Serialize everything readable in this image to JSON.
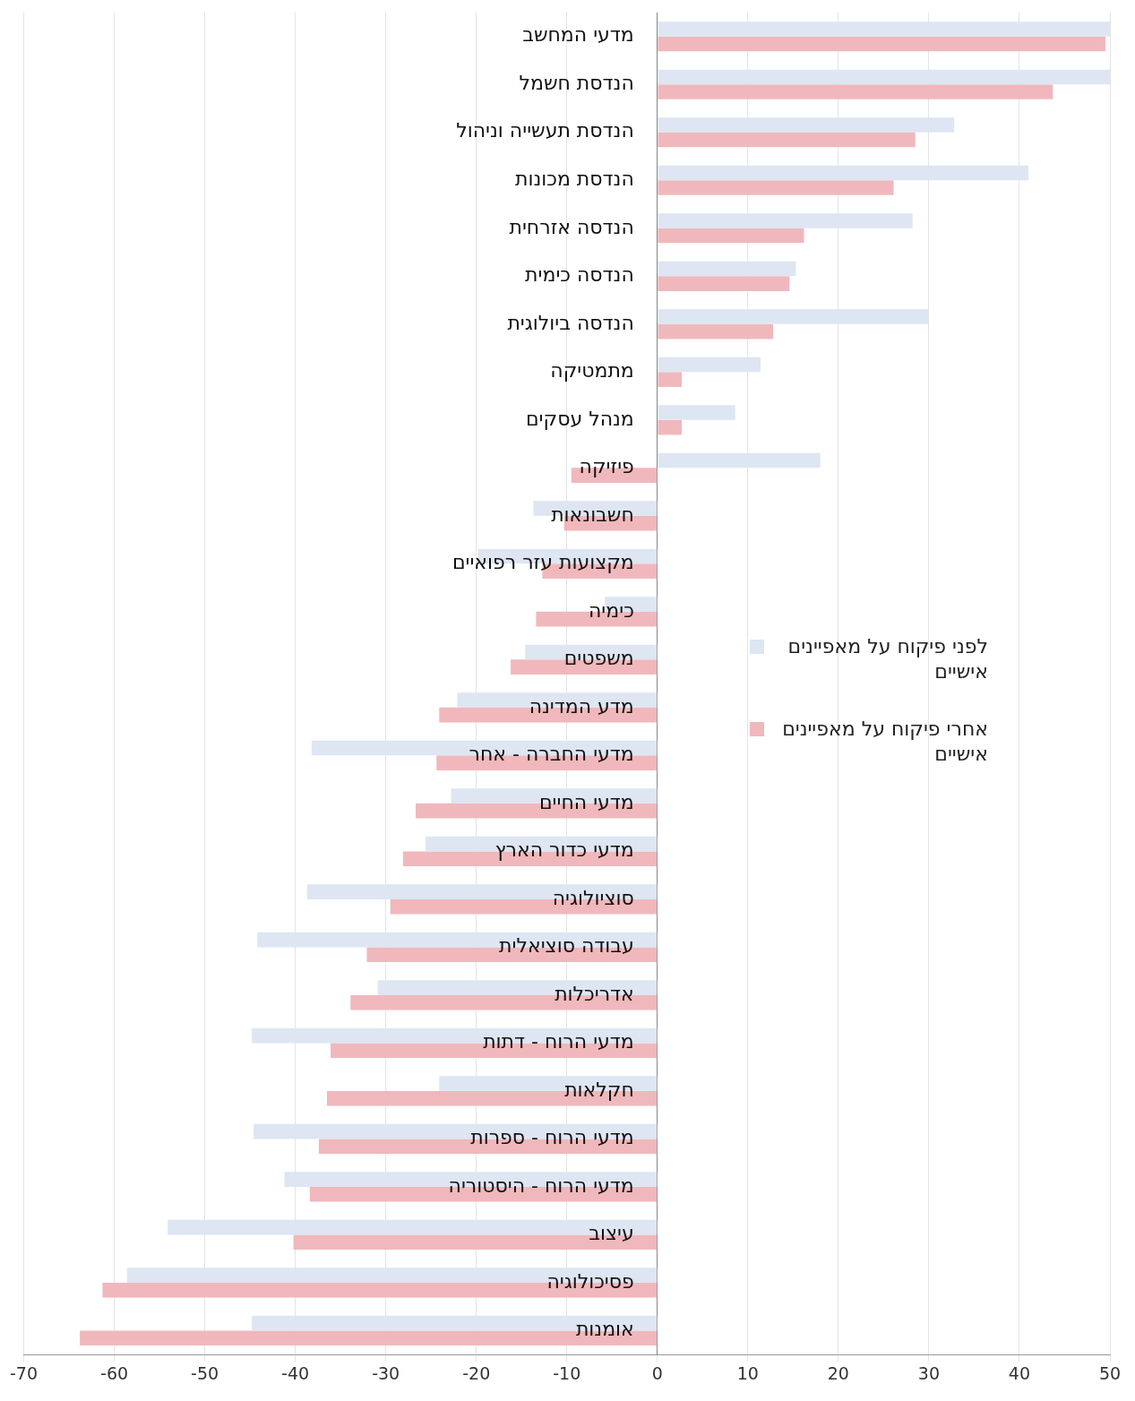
{
  "chart_data": {
    "type": "bar",
    "orientation": "horizontal",
    "categories": [
      "מדעי המחשב",
      "הנדסת חשמל",
      "הנדסת תעשייה וניהול",
      "הנדסת מכונות",
      "הנדסה אזרחית",
      "הנדסה כימית",
      "הנדסה ביולוגית",
      "מתמטיקה",
      "מנהל עסקים",
      "פיזיקה",
      "חשבונאות",
      "מקצועות עזר רפואיים",
      "כימיה",
      "משפטים",
      "מדע המדינה",
      "מדעי החברה - אחר",
      "מדעי החיים",
      "מדעי כדור הארץ",
      "סוציולוגיה",
      "עבודה סוציאלית",
      "אדריכלות",
      "מדעי הרוח - דתות",
      "חקלאות",
      "מדעי הרוח - ספרות",
      "מדעי הרוח - היסטוריה",
      "עיצוב",
      "פסיכולוגיה",
      "אומנות"
    ],
    "series": [
      {
        "name": "לפני פיקוח על מאפיינים אישיים",
        "color": "#dde6f2",
        "values": [
          50,
          50,
          32.8,
          41,
          28.2,
          15.3,
          29.9,
          11.4,
          8.6,
          18,
          -13.7,
          -19.8,
          -5.8,
          -14.6,
          -22.1,
          -38.2,
          -22.8,
          -25.6,
          -38.7,
          -44.2,
          -30.9,
          -44.8,
          -24.1,
          -44.6,
          -41.2,
          -54.1,
          -58.6,
          -44.8
        ]
      },
      {
        "name": "אחרי פיקוח על מאפיינים אישיים",
        "color": "#f0b8bc",
        "values": [
          49.5,
          43.7,
          28.5,
          26.1,
          16.2,
          14.6,
          12.8,
          2.7,
          2.7,
          -9.5,
          -10.3,
          -12.7,
          -13.4,
          -16.2,
          -24.1,
          -24.4,
          -26.7,
          -28.1,
          -29.5,
          -32.1,
          -33.9,
          -36.1,
          -36.5,
          -37.4,
          -38.4,
          -40.2,
          -61.3,
          -63.8
        ]
      }
    ],
    "xlim": [
      -70,
      50
    ],
    "xticks": [
      -70,
      -60,
      -50,
      -40,
      -30,
      -20,
      -10,
      0,
      10,
      20,
      30,
      40,
      50
    ],
    "grid": "x",
    "legend": "right"
  }
}
